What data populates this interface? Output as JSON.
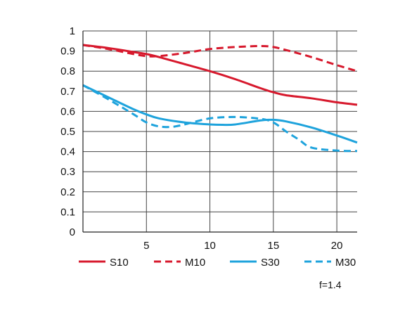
{
  "chart_data": {
    "type": "line",
    "xlim": [
      0,
      21.6
    ],
    "ylim": [
      0,
      1
    ],
    "x_ticks": [
      "5",
      "10",
      "15",
      "20"
    ],
    "y_ticks": [
      "0",
      "0.1",
      "0.2",
      "0.3",
      "0.4",
      "0.5",
      "0.6",
      "0.7",
      "0.8",
      "0.9",
      "1"
    ],
    "grid": true,
    "legend_position": "bottom",
    "note": "f=1.4",
    "series": [
      {
        "name": "S10",
        "color": "#d7192d",
        "style": "solid",
        "x": [
          0,
          2,
          4,
          5,
          6,
          8,
          10,
          12,
          14,
          15,
          16,
          18,
          20,
          21.6
        ],
        "y": [
          0.93,
          0.915,
          0.895,
          0.885,
          0.87,
          0.835,
          0.8,
          0.76,
          0.715,
          0.695,
          0.68,
          0.665,
          0.645,
          0.633
        ]
      },
      {
        "name": "M10",
        "color": "#d7192d",
        "style": "dashed",
        "x": [
          0,
          2,
          4,
          5,
          6,
          8,
          10,
          12,
          14,
          15,
          16,
          18,
          20,
          21.6
        ],
        "y": [
          0.93,
          0.91,
          0.885,
          0.875,
          0.875,
          0.89,
          0.91,
          0.92,
          0.925,
          0.92,
          0.905,
          0.87,
          0.83,
          0.8
        ]
      },
      {
        "name": "S30",
        "color": "#1ea3dc",
        "style": "solid",
        "x": [
          0,
          2,
          4,
          5,
          6,
          8,
          10,
          11,
          12,
          14,
          15,
          16,
          18,
          20,
          21.6
        ],
        "y": [
          0.73,
          0.67,
          0.61,
          0.585,
          0.565,
          0.545,
          0.535,
          0.533,
          0.535,
          0.555,
          0.558,
          0.55,
          0.52,
          0.48,
          0.445
        ]
      },
      {
        "name": "M30",
        "color": "#1ea3dc",
        "style": "dashed",
        "x": [
          0,
          2,
          4,
          5,
          6,
          7,
          8,
          10,
          12,
          14,
          15,
          16,
          17,
          18,
          20,
          21.6
        ],
        "y": [
          0.73,
          0.66,
          0.585,
          0.545,
          0.525,
          0.523,
          0.535,
          0.565,
          0.572,
          0.563,
          0.545,
          0.5,
          0.46,
          0.42,
          0.405,
          0.403
        ]
      }
    ]
  }
}
